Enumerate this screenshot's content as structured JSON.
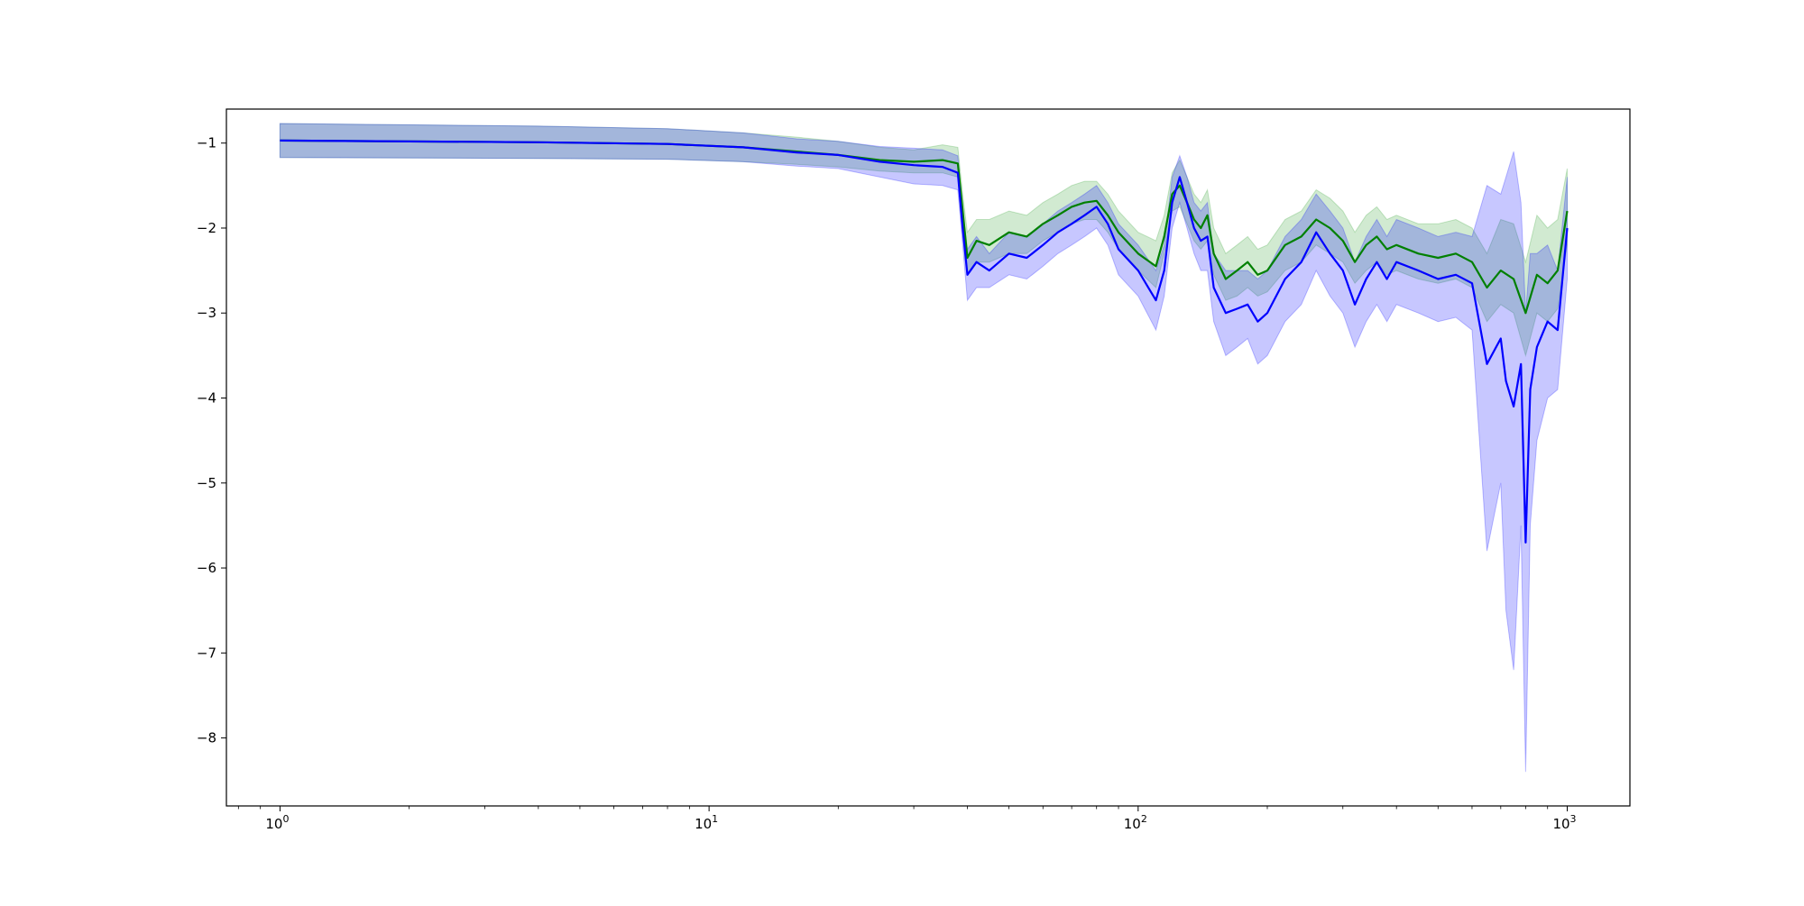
{
  "chart_data": {
    "type": "line",
    "title": "",
    "xlabel": "",
    "ylabel": "",
    "xscale": "log",
    "xlim": [
      0.75,
      1400
    ],
    "ylim": [
      -8.8,
      -0.6
    ],
    "grid": false,
    "legend": "none",
    "xticks": [
      {
        "value": 1,
        "base": "10",
        "exp": "0"
      },
      {
        "value": 10,
        "base": "10",
        "exp": "1"
      },
      {
        "value": 100,
        "base": "10",
        "exp": "2"
      },
      {
        "value": 1000,
        "base": "10",
        "exp": "3"
      }
    ],
    "yticks": [
      -1,
      -2,
      -3,
      -4,
      -5,
      -6,
      -7,
      -8
    ],
    "ytick_labels": [
      "−1",
      "−2",
      "−3",
      "−4",
      "−5",
      "−6",
      "−7",
      "−8"
    ],
    "series": [
      {
        "color": "#008000",
        "band_color": "#2ca02c",
        "x": [
          1,
          4,
          8,
          12,
          16,
          20,
          25,
          30,
          35,
          38,
          39,
          40,
          42,
          45,
          50,
          55,
          60,
          65,
          70,
          75,
          80,
          85,
          90,
          100,
          110,
          115,
          120,
          125,
          130,
          135,
          140,
          145,
          150,
          160,
          170,
          180,
          190,
          200,
          220,
          240,
          260,
          280,
          300,
          320,
          340,
          360,
          380,
          400,
          450,
          500,
          550,
          600,
          650,
          700,
          750,
          800,
          850,
          900,
          950,
          1000
        ],
        "y": [
          -0.97,
          -0.99,
          -1.01,
          -1.05,
          -1.1,
          -1.14,
          -1.2,
          -1.22,
          -1.2,
          -1.24,
          -1.8,
          -2.35,
          -2.15,
          -2.2,
          -2.05,
          -2.1,
          -1.95,
          -1.85,
          -1.75,
          -1.7,
          -1.68,
          -1.85,
          -2.05,
          -2.3,
          -2.45,
          -2.1,
          -1.6,
          -1.5,
          -1.7,
          -1.9,
          -2.0,
          -1.85,
          -2.3,
          -2.6,
          -2.5,
          -2.4,
          -2.55,
          -2.5,
          -2.2,
          -2.1,
          -1.9,
          -2.0,
          -2.15,
          -2.4,
          -2.2,
          -2.1,
          -2.25,
          -2.2,
          -2.3,
          -2.35,
          -2.3,
          -2.4,
          -2.7,
          -2.5,
          -2.6,
          -3.0,
          -2.55,
          -2.65,
          -2.5,
          -1.8
        ],
        "band_low": [
          -1.17,
          -1.18,
          -1.19,
          -1.22,
          -1.25,
          -1.28,
          -1.33,
          -1.35,
          -1.35,
          -1.4,
          -1.95,
          -2.55,
          -2.4,
          -2.4,
          -2.3,
          -2.3,
          -2.15,
          -2.05,
          -1.95,
          -1.9,
          -1.9,
          -2.05,
          -2.25,
          -2.5,
          -2.7,
          -2.3,
          -1.8,
          -1.75,
          -1.95,
          -2.15,
          -2.25,
          -2.15,
          -2.55,
          -2.85,
          -2.8,
          -2.7,
          -2.8,
          -2.75,
          -2.5,
          -2.4,
          -2.2,
          -2.3,
          -2.4,
          -2.65,
          -2.5,
          -2.4,
          -2.55,
          -2.5,
          -2.6,
          -2.65,
          -2.6,
          -2.7,
          -3.1,
          -2.9,
          -3.0,
          -3.5,
          -3.0,
          -3.1,
          -2.95,
          -2.2
        ],
        "band_high": [
          -0.77,
          -0.8,
          -0.83,
          -0.88,
          -0.93,
          -0.98,
          -1.05,
          -1.08,
          -1.02,
          -1.05,
          -1.6,
          -2.05,
          -1.9,
          -1.9,
          -1.8,
          -1.85,
          -1.7,
          -1.6,
          -1.5,
          -1.45,
          -1.45,
          -1.6,
          -1.8,
          -2.05,
          -2.15,
          -1.85,
          -1.35,
          -1.2,
          -1.4,
          -1.6,
          -1.7,
          -1.55,
          -2.0,
          -2.3,
          -2.2,
          -2.1,
          -2.25,
          -2.2,
          -1.9,
          -1.8,
          -1.55,
          -1.65,
          -1.8,
          -2.05,
          -1.85,
          -1.75,
          -1.9,
          -1.85,
          -1.95,
          -1.95,
          -1.9,
          -2.0,
          -2.3,
          -1.9,
          -1.95,
          -2.4,
          -1.85,
          -2.0,
          -1.9,
          -1.3
        ]
      },
      {
        "color": "#0000ff",
        "band_color": "#0000ff",
        "x": [
          1,
          4,
          8,
          12,
          16,
          20,
          25,
          30,
          35,
          38,
          39,
          40,
          42,
          45,
          50,
          55,
          60,
          65,
          70,
          75,
          80,
          85,
          90,
          100,
          110,
          115,
          120,
          125,
          130,
          135,
          140,
          145,
          150,
          160,
          170,
          180,
          190,
          200,
          220,
          240,
          260,
          280,
          300,
          320,
          340,
          360,
          380,
          400,
          450,
          500,
          550,
          600,
          650,
          700,
          720,
          750,
          780,
          800,
          820,
          850,
          900,
          950,
          1000
        ],
        "y": [
          -0.97,
          -0.99,
          -1.01,
          -1.05,
          -1.11,
          -1.14,
          -1.22,
          -1.26,
          -1.28,
          -1.35,
          -2.0,
          -2.55,
          -2.4,
          -2.5,
          -2.3,
          -2.35,
          -2.2,
          -2.05,
          -1.95,
          -1.85,
          -1.75,
          -1.95,
          -2.25,
          -2.5,
          -2.85,
          -2.5,
          -1.7,
          -1.4,
          -1.7,
          -2.0,
          -2.15,
          -2.1,
          -2.7,
          -3.0,
          -2.95,
          -2.9,
          -3.1,
          -3.0,
          -2.6,
          -2.4,
          -2.05,
          -2.3,
          -2.5,
          -2.9,
          -2.6,
          -2.4,
          -2.6,
          -2.4,
          -2.5,
          -2.6,
          -2.55,
          -2.65,
          -3.6,
          -3.3,
          -3.8,
          -4.1,
          -3.6,
          -5.7,
          -3.9,
          -3.4,
          -3.1,
          -3.2,
          -2.0
        ],
        "band_low": [
          -1.17,
          -1.18,
          -1.19,
          -1.22,
          -1.27,
          -1.3,
          -1.4,
          -1.48,
          -1.5,
          -1.55,
          -2.2,
          -2.85,
          -2.7,
          -2.7,
          -2.55,
          -2.6,
          -2.45,
          -2.3,
          -2.2,
          -2.1,
          -2.0,
          -2.2,
          -2.55,
          -2.8,
          -3.2,
          -2.8,
          -2.0,
          -1.7,
          -2.0,
          -2.3,
          -2.5,
          -2.5,
          -3.1,
          -3.5,
          -3.4,
          -3.3,
          -3.6,
          -3.5,
          -3.1,
          -2.9,
          -2.5,
          -2.8,
          -3.0,
          -3.4,
          -3.1,
          -2.9,
          -3.1,
          -2.9,
          -3.0,
          -3.1,
          -3.05,
          -3.2,
          -5.8,
          -5.0,
          -6.5,
          -7.2,
          -5.5,
          -8.4,
          -5.5,
          -4.5,
          -4.0,
          -3.9,
          -2.6
        ],
        "band_high": [
          -0.77,
          -0.8,
          -0.83,
          -0.88,
          -0.95,
          -0.98,
          -1.04,
          -1.06,
          -1.08,
          -1.15,
          -1.8,
          -2.25,
          -2.1,
          -2.3,
          -2.05,
          -2.1,
          -1.95,
          -1.8,
          -1.7,
          -1.6,
          -1.5,
          -1.7,
          -1.95,
          -2.2,
          -2.5,
          -2.2,
          -1.4,
          -1.15,
          -1.4,
          -1.7,
          -1.8,
          -1.7,
          -2.3,
          -2.5,
          -2.5,
          -2.5,
          -2.6,
          -2.5,
          -2.1,
          -1.9,
          -1.6,
          -1.8,
          -2.0,
          -2.4,
          -2.1,
          -1.9,
          -2.1,
          -1.9,
          -2.0,
          -2.1,
          -2.05,
          -2.1,
          -1.5,
          -1.6,
          -1.4,
          -1.1,
          -1.7,
          -3.0,
          -2.3,
          -2.3,
          -2.2,
          -2.5,
          -1.4
        ]
      }
    ]
  }
}
